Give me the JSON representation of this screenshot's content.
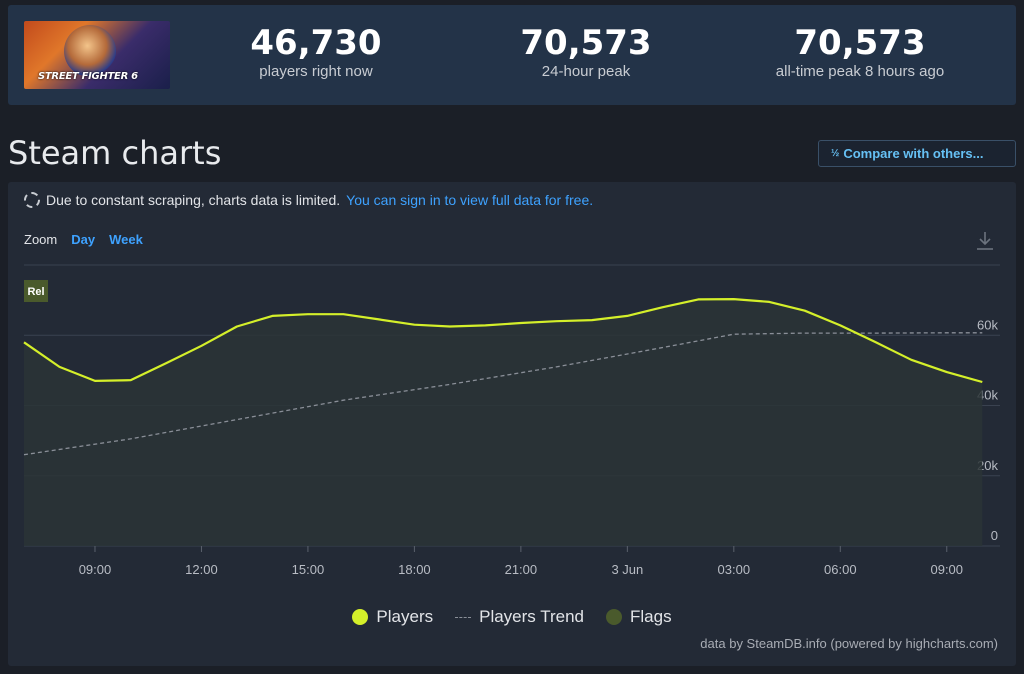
{
  "stats": {
    "banner_text": "STREET FIGHTER 6",
    "items": [
      {
        "value": "46,730",
        "label": "players right now"
      },
      {
        "value": "70,573",
        "label": "24-hour peak"
      },
      {
        "value": "70,573",
        "label": "all-time peak 8 hours ago"
      }
    ]
  },
  "page_title": "Steam charts",
  "compare_button": {
    "label": "Compare with others...",
    "icon": "fraction-icon"
  },
  "notice": {
    "text": "Due to constant scraping, charts data is limited.",
    "link": "You can sign in to view full data for free."
  },
  "zoom": {
    "label": "Zoom",
    "options": [
      "Day",
      "Week"
    ]
  },
  "colors": {
    "players": "#d4ef2a",
    "trend": "#8a8f98",
    "flags": "#4a5a2c",
    "accent": "#3ea2ff"
  },
  "chart_data": {
    "type": "line",
    "flag": "Rel",
    "x_ticks": [
      "09:00",
      "12:00",
      "15:00",
      "18:00",
      "21:00",
      "3 Jun",
      "03:00",
      "06:00",
      "09:00"
    ],
    "y_ticks": [
      "0",
      "20k",
      "40k",
      "60k"
    ],
    "ylim": [
      0,
      80000
    ],
    "grid": true,
    "series": [
      {
        "name": "Players",
        "x": [
          "2 Jun 07:00",
          "2 Jun 08:00",
          "2 Jun 09:00",
          "2 Jun 10:00",
          "2 Jun 11:00",
          "2 Jun 12:00",
          "2 Jun 13:00",
          "2 Jun 14:00",
          "2 Jun 15:00",
          "2 Jun 16:00",
          "2 Jun 17:00",
          "2 Jun 18:00",
          "2 Jun 19:00",
          "2 Jun 20:00",
          "2 Jun 21:00",
          "2 Jun 22:00",
          "2 Jun 23:00",
          "3 Jun 00:00",
          "3 Jun 01:00",
          "3 Jun 02:00",
          "3 Jun 03:00",
          "3 Jun 04:00",
          "3 Jun 05:00",
          "3 Jun 06:00",
          "3 Jun 07:00",
          "3 Jun 08:00",
          "3 Jun 09:00",
          "3 Jun 10:00"
        ],
        "values": [
          58000,
          51000,
          47000,
          47200,
          52000,
          57000,
          62500,
          65500,
          66000,
          66000,
          64500,
          63000,
          62500,
          62800,
          63500,
          64000,
          64300,
          65500,
          68000,
          70200,
          70300,
          69500,
          67000,
          62800,
          58000,
          53000,
          49500,
          46700
        ]
      },
      {
        "name": "Players Trend",
        "x": [
          "2 Jun 07:00",
          "2 Jun 10:00",
          "2 Jun 13:00",
          "2 Jun 16:00",
          "2 Jun 19:00",
          "2 Jun 22:00",
          "3 Jun 01:00",
          "3 Jun 03:00",
          "3 Jun 05:00",
          "3 Jun 07:00",
          "3 Jun 09:00",
          "3 Jun 10:00"
        ],
        "values": [
          26000,
          30500,
          36000,
          41500,
          46000,
          51000,
          56500,
          60300,
          60600,
          60600,
          60700,
          60700
        ]
      }
    ],
    "legend": [
      "Players",
      "Players Trend",
      "Flags"
    ],
    "credit": "data by SteamDB.info (powered by highcharts.com)"
  }
}
